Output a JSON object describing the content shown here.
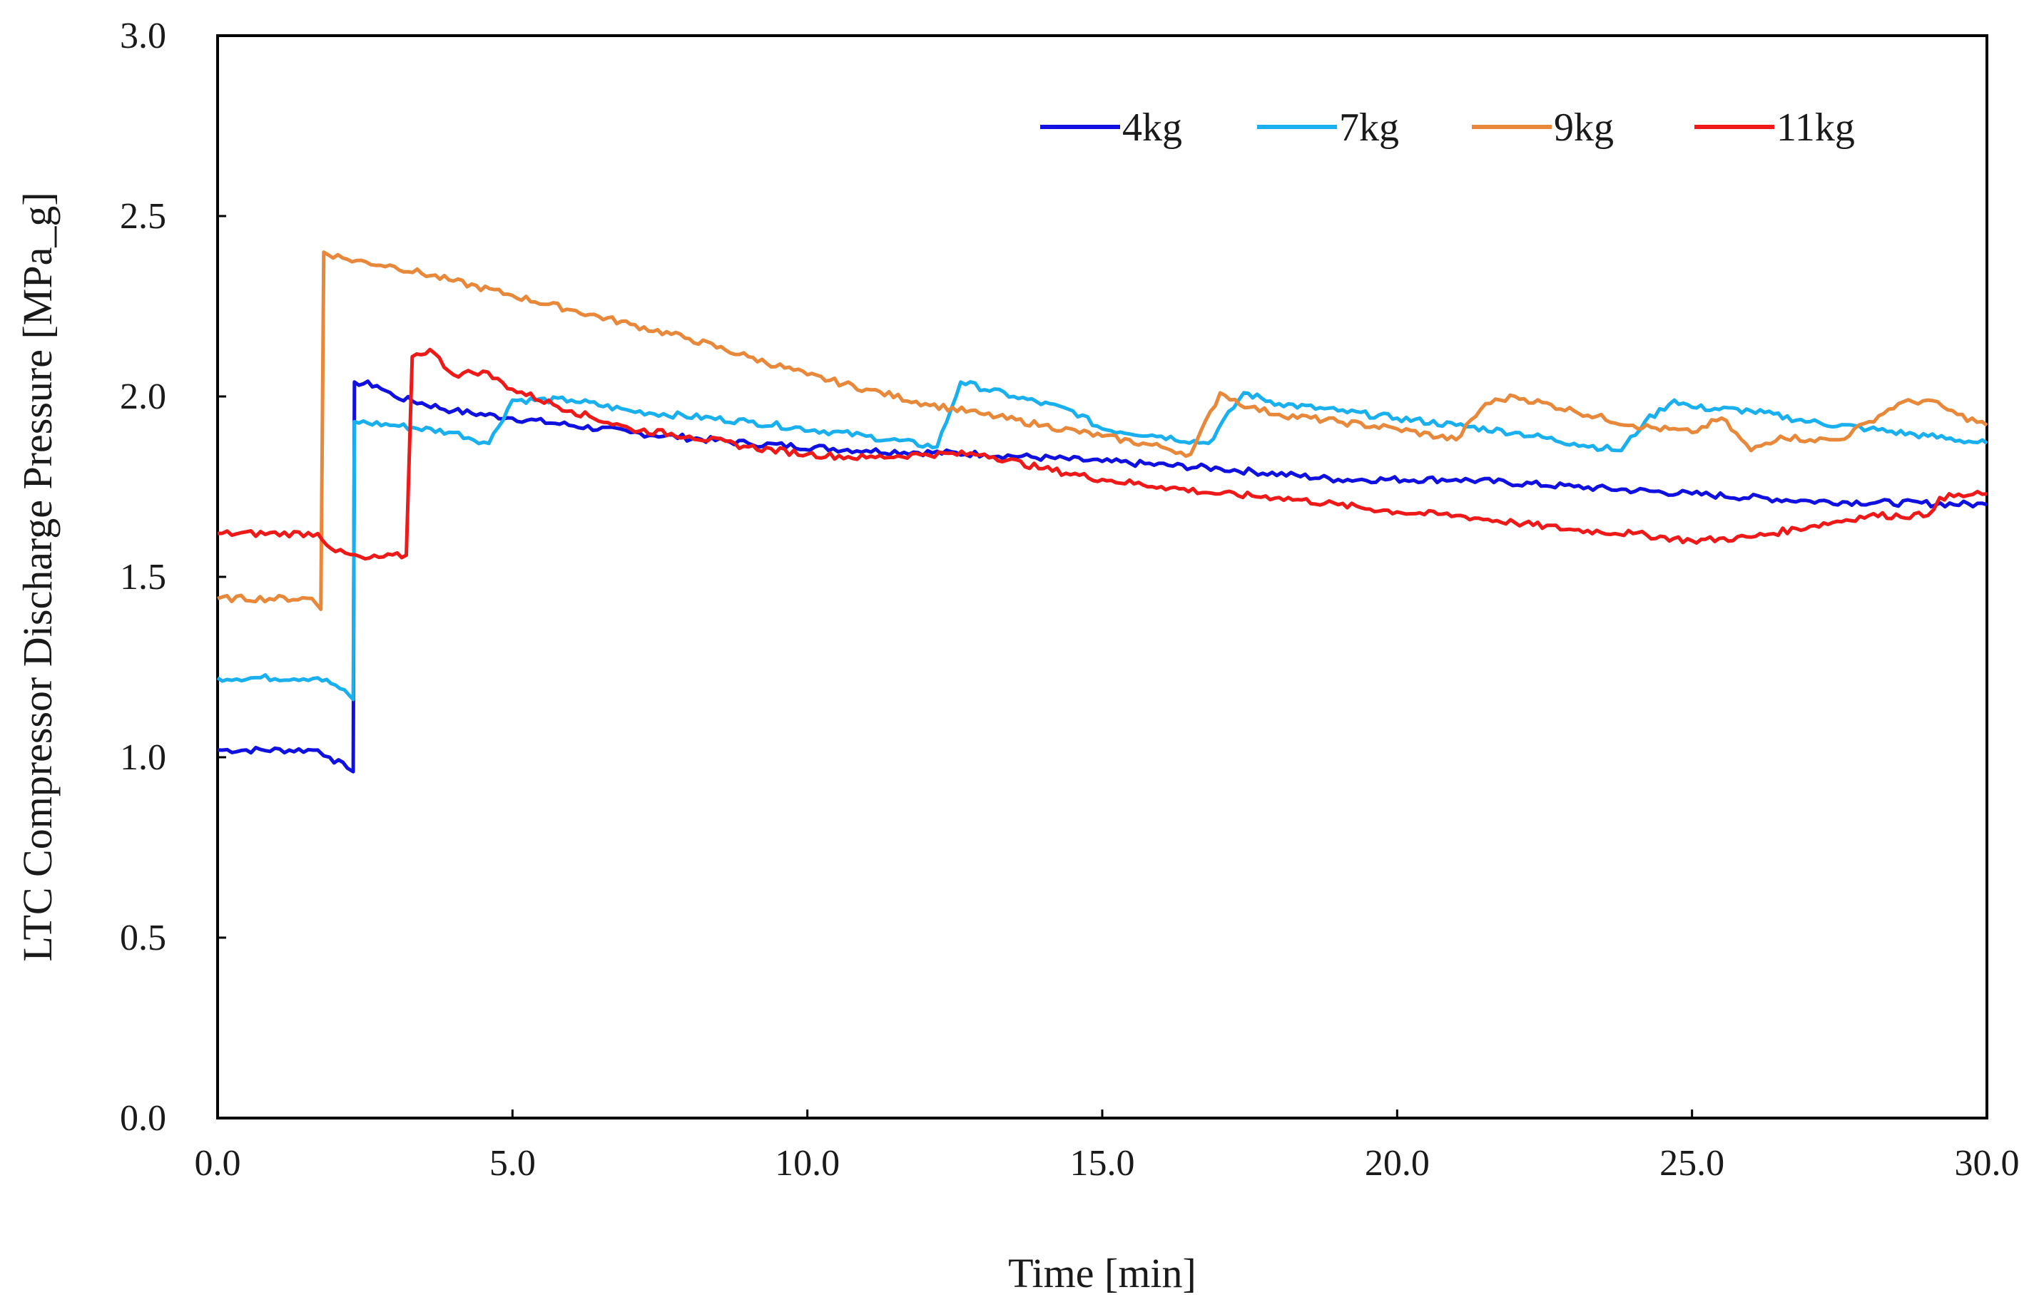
{
  "chart_data": {
    "type": "line",
    "title": "",
    "xlabel": "Time [min]",
    "ylabel": "LTC Compressor Discharge Pressure [MPa_g]",
    "xlim": [
      0,
      30
    ],
    "ylim": [
      0,
      3
    ],
    "x_ticks": [
      "0.0",
      "5.0",
      "10.0",
      "15.0",
      "20.0",
      "25.0",
      "30.0"
    ],
    "y_ticks": [
      "0.0",
      "0.5",
      "1.0",
      "1.5",
      "2.0",
      "2.5",
      "3.0"
    ],
    "grid": false,
    "legend_position": "top-right",
    "series": [
      {
        "name": "4kg",
        "color": "#1010e0",
        "points": [
          [
            0,
            1.02
          ],
          [
            1.7,
            1.02
          ],
          [
            1.9,
            1.0
          ],
          [
            2.2,
            0.97
          ],
          [
            2.3,
            0.96
          ],
          [
            2.32,
            2.04
          ],
          [
            2.7,
            2.03
          ],
          [
            3.0,
            2.0
          ],
          [
            4.0,
            1.96
          ],
          [
            5.0,
            1.94
          ],
          [
            7.0,
            1.9
          ],
          [
            9.0,
            1.87
          ],
          [
            11.0,
            1.85
          ],
          [
            13.0,
            1.84
          ],
          [
            15.0,
            1.82
          ],
          [
            17.0,
            1.8
          ],
          [
            19.0,
            1.77
          ],
          [
            21.0,
            1.77
          ],
          [
            23.0,
            1.75
          ],
          [
            25.0,
            1.73
          ],
          [
            27.0,
            1.71
          ],
          [
            30.0,
            1.7
          ]
        ]
      },
      {
        "name": "7kg",
        "color": "#1ab0ee",
        "points": [
          [
            0,
            1.22
          ],
          [
            1.7,
            1.22
          ],
          [
            2.0,
            1.2
          ],
          [
            2.3,
            1.16
          ],
          [
            2.32,
            1.93
          ],
          [
            3.0,
            1.92
          ],
          [
            4.0,
            1.9
          ],
          [
            4.6,
            1.87
          ],
          [
            5.0,
            1.99
          ],
          [
            6.0,
            1.99
          ],
          [
            7.0,
            1.96
          ],
          [
            9.0,
            1.93
          ],
          [
            11.0,
            1.89
          ],
          [
            12.2,
            1.86
          ],
          [
            12.6,
            2.04
          ],
          [
            13.5,
            2.0
          ],
          [
            14.5,
            1.96
          ],
          [
            15.0,
            1.91
          ],
          [
            16.0,
            1.89
          ],
          [
            16.8,
            1.87
          ],
          [
            17.4,
            2.01
          ],
          [
            18.0,
            1.98
          ],
          [
            19.0,
            1.96
          ],
          [
            20.0,
            1.94
          ],
          [
            21.0,
            1.92
          ],
          [
            22.0,
            1.9
          ],
          [
            23.0,
            1.87
          ],
          [
            23.8,
            1.85
          ],
          [
            24.2,
            1.93
          ],
          [
            24.7,
            1.99
          ],
          [
            25.0,
            1.97
          ],
          [
            26.0,
            1.96
          ],
          [
            27.0,
            1.93
          ],
          [
            28.0,
            1.91
          ],
          [
            29.0,
            1.89
          ],
          [
            30.0,
            1.87
          ]
        ]
      },
      {
        "name": "9kg",
        "color": "#e8883a",
        "points": [
          [
            0,
            1.44
          ],
          [
            1.6,
            1.44
          ],
          [
            1.75,
            1.41
          ],
          [
            1.8,
            2.4
          ],
          [
            2.2,
            2.38
          ],
          [
            3.0,
            2.36
          ],
          [
            4.0,
            2.32
          ],
          [
            5.0,
            2.28
          ],
          [
            6.0,
            2.24
          ],
          [
            7.0,
            2.2
          ],
          [
            8.0,
            2.16
          ],
          [
            9.0,
            2.11
          ],
          [
            10.0,
            2.06
          ],
          [
            11.0,
            2.02
          ],
          [
            12.0,
            1.98
          ],
          [
            13.0,
            1.95
          ],
          [
            14.0,
            1.92
          ],
          [
            15.0,
            1.89
          ],
          [
            16.0,
            1.86
          ],
          [
            16.5,
            1.84
          ],
          [
            17.0,
            2.01
          ],
          [
            17.5,
            1.97
          ],
          [
            18.0,
            1.95
          ],
          [
            19.0,
            1.93
          ],
          [
            20.0,
            1.91
          ],
          [
            21.0,
            1.88
          ],
          [
            21.5,
            1.98
          ],
          [
            22.0,
            2.0
          ],
          [
            23.0,
            1.96
          ],
          [
            24.0,
            1.92
          ],
          [
            25.0,
            1.9
          ],
          [
            25.5,
            1.94
          ],
          [
            26.0,
            1.85
          ],
          [
            26.5,
            1.89
          ],
          [
            27.0,
            1.88
          ],
          [
            27.5,
            1.88
          ],
          [
            28.0,
            1.93
          ],
          [
            28.5,
            1.98
          ],
          [
            29.0,
            1.99
          ],
          [
            29.5,
            1.95
          ],
          [
            30.0,
            1.92
          ]
        ]
      },
      {
        "name": "11kg",
        "color": "#ee1a1a",
        "points": [
          [
            0,
            1.62
          ],
          [
            1.7,
            1.62
          ],
          [
            2.0,
            1.57
          ],
          [
            2.5,
            1.55
          ],
          [
            3.2,
            1.56
          ],
          [
            3.3,
            2.11
          ],
          [
            3.6,
            2.13
          ],
          [
            4.0,
            2.06
          ],
          [
            4.5,
            2.07
          ],
          [
            5.0,
            2.02
          ],
          [
            6.0,
            1.96
          ],
          [
            7.0,
            1.91
          ],
          [
            8.0,
            1.89
          ],
          [
            9.0,
            1.86
          ],
          [
            10.0,
            1.84
          ],
          [
            11.0,
            1.83
          ],
          [
            12.0,
            1.84
          ],
          [
            13.0,
            1.84
          ],
          [
            14.0,
            1.8
          ],
          [
            15.0,
            1.77
          ],
          [
            16.0,
            1.75
          ],
          [
            17.0,
            1.73
          ],
          [
            18.0,
            1.72
          ],
          [
            19.0,
            1.7
          ],
          [
            20.0,
            1.68
          ],
          [
            21.0,
            1.67
          ],
          [
            22.0,
            1.65
          ],
          [
            23.0,
            1.63
          ],
          [
            24.0,
            1.62
          ],
          [
            25.0,
            1.6
          ],
          [
            26.0,
            1.61
          ],
          [
            27.0,
            1.64
          ],
          [
            28.0,
            1.67
          ],
          [
            29.0,
            1.67
          ],
          [
            29.2,
            1.72
          ],
          [
            30.0,
            1.73
          ]
        ]
      }
    ]
  }
}
